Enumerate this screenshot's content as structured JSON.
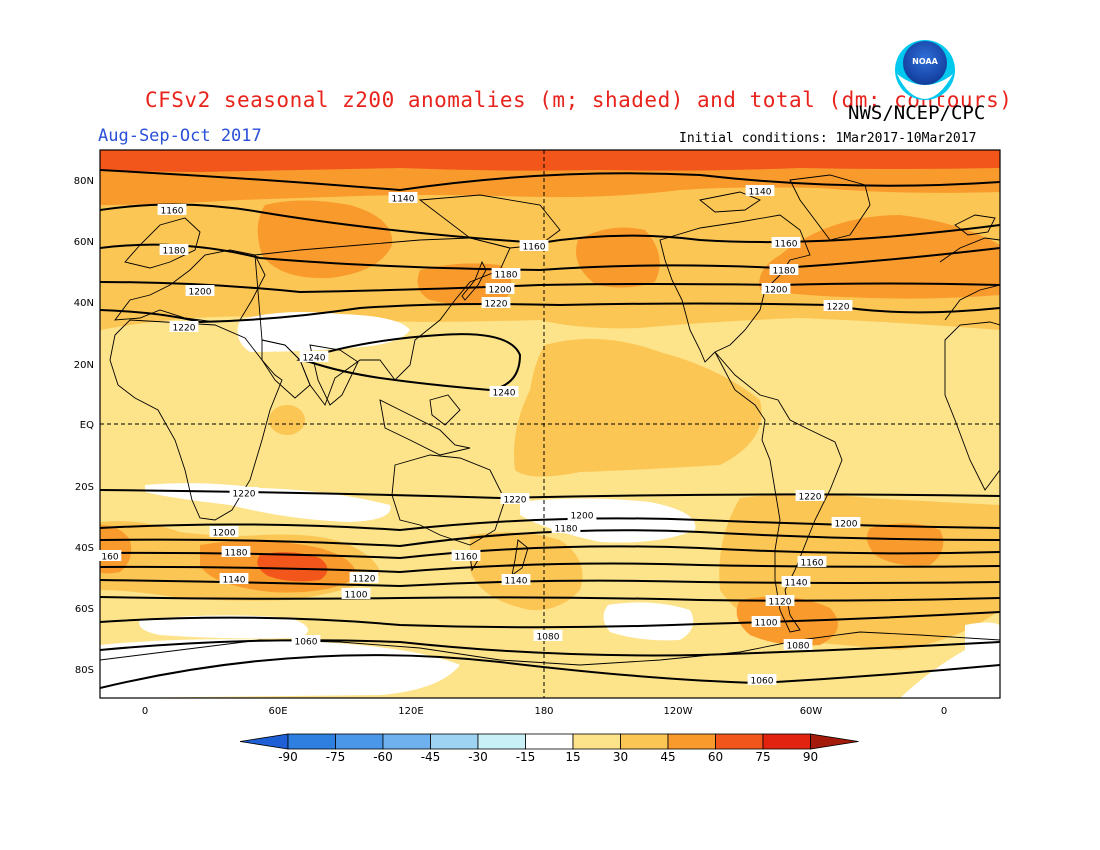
{
  "header": {
    "title": "CFSv2 seasonal z200 anomalies (m; shaded) and total (dm; contours)",
    "agency": "NWS/NCEP/CPC",
    "season": "Aug-Sep-Oct 2017",
    "initial_conditions": "Initial conditions: 1Mar2017-10Mar2017",
    "logo_text": "NOAA"
  },
  "axes": {
    "lat_labels": [
      "80N",
      "60N",
      "40N",
      "20N",
      "EQ",
      "20S",
      "40S",
      "60S",
      "80S"
    ],
    "lon_labels": [
      "0",
      "60E",
      "120E",
      "180",
      "120W",
      "60W",
      "0"
    ]
  },
  "colorbar": {
    "levels": [
      "-90",
      "-75",
      "-60",
      "-45",
      "-30",
      "-15",
      "15",
      "30",
      "45",
      "60",
      "75",
      "90"
    ],
    "colors": [
      "#1f5fd6",
      "#2f7fe0",
      "#4a96e8",
      "#6fb0ee",
      "#9fd3f3",
      "#c9f0f7",
      "#ffffff",
      "#fde38a",
      "#fcc655",
      "#f99b2c",
      "#f3561a",
      "#e2230f",
      "#a51b0b"
    ]
  },
  "contour_labels": [
    "1140",
    "1140",
    "1160",
    "1160",
    "1160",
    "1180",
    "1180",
    "1180",
    "1200",
    "1200",
    "1200",
    "1220",
    "1220",
    "1220",
    "1240",
    "1240",
    "1220",
    "1220",
    "1220",
    "1200",
    "1200",
    "1200",
    "1180",
    "1180",
    "160",
    "1160",
    "1160",
    "1140",
    "1140",
    "1140",
    "1120",
    "1120",
    "1100",
    "1100",
    "1080",
    "1080",
    "1060",
    "1060"
  ],
  "map": {
    "domain_lon": [
      -20,
      380
    ],
    "domain_lat": [
      -90,
      90
    ],
    "anomaly_colors": {
      "bg": "#fde38a",
      "c30_45": "#fcc655",
      "c45_60": "#f99b2c",
      "c60_75": "#f3561a",
      "c_neg15_15": "#ffffff"
    }
  }
}
